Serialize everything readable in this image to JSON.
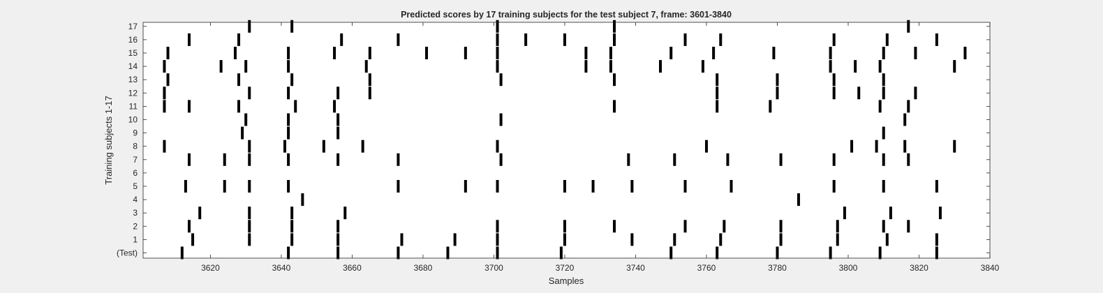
{
  "chart_data": {
    "type": "raster",
    "title": "Predicted scores by 17 training subjects for the test subject 7, frame: 3601-3840",
    "xlabel": "Samples",
    "ylabel": "Training subjects 1-17",
    "xlim": [
      3601,
      3840
    ],
    "xticks": [
      3620,
      3640,
      3660,
      3680,
      3700,
      3720,
      3740,
      3760,
      3780,
      3800,
      3820,
      3840
    ],
    "yticks": [
      "(Test)",
      "1",
      "2",
      "3",
      "4",
      "5",
      "6",
      "7",
      "8",
      "9",
      "10",
      "11",
      "12",
      "13",
      "14",
      "15",
      "16",
      "17"
    ],
    "colors": {
      "mark": "#000000",
      "axes_bg": "#ffffff",
      "figure_bg": "#f0f0f0"
    },
    "rows": [
      {
        "label": "(Test)",
        "spikes": [
          3612,
          3642,
          3656,
          3673,
          3687,
          3701,
          3719,
          3750,
          3763,
          3780,
          3795,
          3809,
          3825
        ]
      },
      {
        "label": "1",
        "spikes": [
          3615,
          3631,
          3643,
          3656,
          3674,
          3689,
          3701,
          3720,
          3739,
          3751,
          3764,
          3781,
          3797,
          3811,
          3825
        ]
      },
      {
        "label": "2",
        "spikes": [
          3614,
          3631,
          3643,
          3656,
          3701,
          3720,
          3734,
          3754,
          3765,
          3781,
          3797,
          3810,
          3817
        ]
      },
      {
        "label": "3",
        "spikes": [
          3617,
          3631,
          3643,
          3658,
          3799,
          3812,
          3826
        ]
      },
      {
        "label": "4",
        "spikes": [
          3646,
          3786
        ]
      },
      {
        "label": "5",
        "spikes": [
          3613,
          3624,
          3631,
          3642,
          3673,
          3692,
          3701,
          3720,
          3728,
          3739,
          3754,
          3767,
          3796,
          3810,
          3825
        ]
      },
      {
        "label": "6",
        "spikes": []
      },
      {
        "label": "7",
        "spikes": [
          3614,
          3624,
          3631,
          3642,
          3656,
          3673,
          3702,
          3738,
          3751,
          3766,
          3781,
          3796,
          3810,
          3817
        ]
      },
      {
        "label": "8",
        "spikes": [
          3607,
          3631,
          3641,
          3652,
          3663,
          3701,
          3760,
          3801,
          3808,
          3816,
          3830
        ]
      },
      {
        "label": "9",
        "spikes": [
          3629,
          3642,
          3656,
          3810
        ]
      },
      {
        "label": "10",
        "spikes": [
          3630,
          3642,
          3656,
          3702,
          3816
        ]
      },
      {
        "label": "11",
        "spikes": [
          3607,
          3614,
          3628,
          3644,
          3655,
          3734,
          3763,
          3778,
          3809,
          3817
        ]
      },
      {
        "label": "12",
        "spikes": [
          3607,
          3631,
          3642,
          3656,
          3665,
          3763,
          3780,
          3796,
          3803,
          3810,
          3819
        ]
      },
      {
        "label": "13",
        "spikes": [
          3608,
          3628,
          3643,
          3665,
          3702,
          3734,
          3763,
          3780,
          3796,
          3810
        ]
      },
      {
        "label": "14",
        "spikes": [
          3607,
          3623,
          3630,
          3642,
          3664,
          3701,
          3726,
          3733,
          3747,
          3759,
          3795,
          3802,
          3809,
          3830
        ]
      },
      {
        "label": "15",
        "spikes": [
          3608,
          3627,
          3642,
          3655,
          3665,
          3681,
          3692,
          3701,
          3726,
          3733,
          3750,
          3762,
          3779,
          3795,
          3810,
          3819,
          3833
        ]
      },
      {
        "label": "16",
        "spikes": [
          3614,
          3628,
          3657,
          3673,
          3701,
          3709,
          3720,
          3734,
          3754,
          3764,
          3796,
          3811,
          3825
        ]
      },
      {
        "label": "17",
        "spikes": [
          3631,
          3643,
          3701,
          3734,
          3817
        ]
      }
    ]
  }
}
